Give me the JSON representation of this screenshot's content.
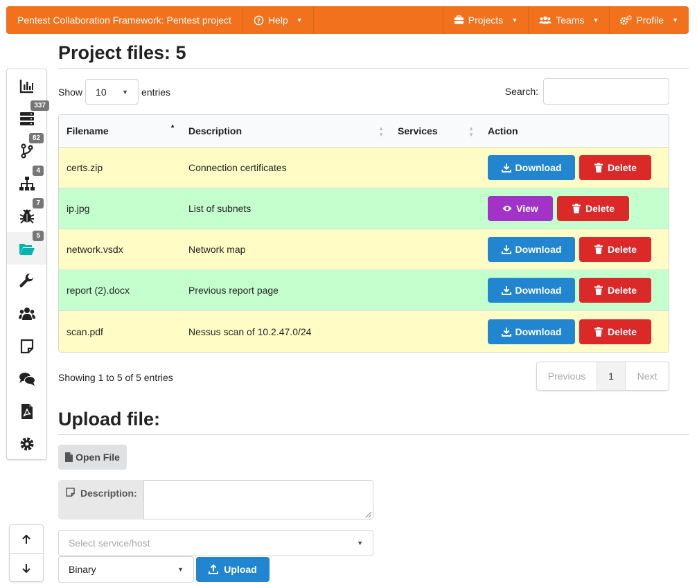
{
  "navbar": {
    "brand": "Pentest Collaboration Framework: Pentest project",
    "help": "Help",
    "projects": "Projects",
    "teams": "Teams",
    "profile": "Profile"
  },
  "sidebar": {
    "items": [
      {
        "icon": "chart-icon",
        "badge": ""
      },
      {
        "icon": "server-icon",
        "badge": "337"
      },
      {
        "icon": "branch-icon",
        "badge": "82"
      },
      {
        "icon": "network-icon",
        "badge": "4"
      },
      {
        "icon": "bug-icon",
        "badge": "7"
      },
      {
        "icon": "folder-open-icon",
        "badge": "5"
      },
      {
        "icon": "wrench-icon",
        "badge": ""
      },
      {
        "icon": "users-icon",
        "badge": ""
      },
      {
        "icon": "note-icon",
        "badge": ""
      },
      {
        "icon": "chat-icon",
        "badge": ""
      },
      {
        "icon": "pdf-icon",
        "badge": ""
      },
      {
        "icon": "gear-icon",
        "badge": ""
      }
    ]
  },
  "main": {
    "title": "Project files: 5",
    "show_label": "Show",
    "entries_value": "10",
    "entries_label": "entries",
    "search_label": "Search:",
    "columns": [
      "Filename",
      "Description",
      "Services",
      "Action"
    ],
    "rows": [
      {
        "filename": "certs.zip",
        "description": "Connection certificates",
        "services": "",
        "primary": "Download",
        "secondary": "Delete"
      },
      {
        "filename": "ip.jpg",
        "description": "List of subnets",
        "services": "",
        "primary": "View",
        "secondary": "Delete"
      },
      {
        "filename": "network.vsdx",
        "description": "Network map",
        "services": "",
        "primary": "Download",
        "secondary": "Delete"
      },
      {
        "filename": "report (2).docx",
        "description": "Previous report page",
        "services": "",
        "primary": "Download",
        "secondary": "Delete"
      },
      {
        "filename": "scan.pdf",
        "description": "Nessus scan of 10.2.47.0/24",
        "services": "",
        "primary": "Download",
        "secondary": "Delete"
      }
    ],
    "info": "Showing 1 to 5 of 5 entries",
    "pager": {
      "prev": "Previous",
      "page": "1",
      "next": "Next"
    }
  },
  "upload": {
    "title": "Upload file:",
    "open_file": "Open File",
    "description_label": "Description:",
    "service_placeholder": "Select service/host",
    "type_value": "Binary",
    "upload_button": "Upload"
  },
  "colors": {
    "accent": "#f2711c",
    "blue": "#2185d0",
    "red": "#db2828",
    "purple": "#a333c8"
  }
}
